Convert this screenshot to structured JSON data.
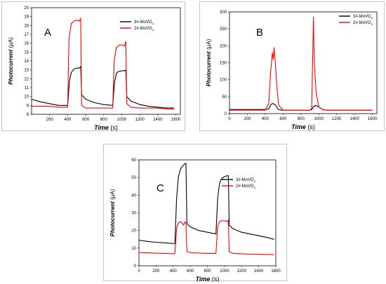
{
  "chart_data": [
    {
      "type": "line",
      "panel_label": "A",
      "xlabel": "Time",
      "xunit": "(s)",
      "ylabel": "Photocurrent",
      "yunit": "(μA)",
      "xlim": [
        0,
        1650
      ],
      "ylim": [
        8,
        20
      ],
      "xticks": [
        200,
        400,
        600,
        800,
        1000,
        1200,
        1400,
        1600
      ],
      "yticks": [
        8,
        9,
        10,
        11,
        12,
        13,
        14,
        15,
        16,
        17,
        18,
        19,
        20
      ],
      "legend_position": "top-right",
      "series": [
        {
          "name": "3#-MoVO",
          "name_sub": "4",
          "color": "#000000",
          "x": [
            0,
            100,
            200,
            300,
            400,
            420,
            440,
            470,
            500,
            530,
            545,
            555,
            600,
            700,
            800,
            900,
            920,
            940,
            960,
            1000,
            1030,
            1045,
            1055,
            1100,
            1200,
            1300,
            1400,
            1500,
            1580
          ],
          "y": [
            9.7,
            9.4,
            9.2,
            9.0,
            9.0,
            11.8,
            12.7,
            13.1,
            13.2,
            13.2,
            13.4,
            10.2,
            9.7,
            9.3,
            9.1,
            9.0,
            11.6,
            12.6,
            12.8,
            12.9,
            12.9,
            13.0,
            10.0,
            9.5,
            9.1,
            8.9,
            8.8,
            8.7,
            8.7
          ]
        },
        {
          "name": "2#-MoVO",
          "name_sub": "4",
          "color": "#ff0000",
          "x": [
            0,
            100,
            200,
            300,
            400,
            415,
            440,
            470,
            500,
            530,
            545,
            555,
            600,
            700,
            800,
            900,
            915,
            940,
            970,
            1000,
            1030,
            1045,
            1055,
            1100,
            1200,
            1300,
            1400,
            1500,
            1580
          ],
          "y": [
            8.9,
            8.9,
            8.9,
            8.8,
            8.8,
            16.5,
            18.2,
            18.5,
            18.6,
            18.5,
            18.8,
            9.0,
            8.7,
            8.7,
            8.7,
            8.7,
            14.0,
            15.5,
            15.8,
            15.8,
            15.7,
            16.2,
            9.2,
            8.8,
            8.7,
            8.7,
            8.7,
            8.6,
            8.6
          ]
        }
      ]
    },
    {
      "type": "line",
      "panel_label": "B",
      "xlabel": "Time",
      "xunit": "(s)",
      "ylabel": "Photocurrent",
      "yunit": "(μA)",
      "xlim": [
        0,
        1650
      ],
      "ylim": [
        0,
        300
      ],
      "xticks": [
        0,
        200,
        400,
        600,
        800,
        1000,
        1200,
        1400,
        1600
      ],
      "yticks": [
        0,
        50,
        100,
        150,
        200,
        250,
        300
      ],
      "legend_position": "top-right",
      "series": [
        {
          "name": "3#-MoVO",
          "name_sub": "4",
          "color": "#000000",
          "x": [
            0,
            200,
            400,
            440,
            460,
            480,
            500,
            520,
            540,
            560,
            600,
            800,
            900,
            920,
            940,
            960,
            1000,
            1040,
            1100,
            1300,
            1500,
            1600
          ],
          "y": [
            12,
            12,
            12,
            14,
            25,
            30,
            28,
            24,
            14,
            11,
            10,
            10,
            10,
            12,
            20,
            24,
            20,
            12,
            10,
            10,
            10,
            10
          ]
        },
        {
          "name": "2#-MoVO",
          "name_sub": "4",
          "color": "#ff0000",
          "x": [
            0,
            200,
            400,
            440,
            460,
            480,
            490,
            500,
            510,
            530,
            550,
            600,
            800,
            900,
            920,
            930,
            940,
            950,
            970,
            1000,
            1040,
            1100,
            1300,
            1500,
            1600
          ],
          "y": [
            10,
            10,
            10,
            30,
            120,
            180,
            160,
            195,
            160,
            80,
            25,
            10,
            10,
            10,
            15,
            150,
            285,
            150,
            60,
            20,
            12,
            10,
            10,
            10,
            10
          ]
        }
      ]
    },
    {
      "type": "line",
      "panel_label": "C",
      "xlabel": "Time",
      "xunit": "(s)",
      "ylabel": "Photocurrent",
      "yunit": "(μA)",
      "xlim": [
        0,
        1600
      ],
      "ylim": [
        0,
        60
      ],
      "xticks": [
        0,
        200,
        400,
        600,
        800,
        1000,
        1200,
        1400,
        1600
      ],
      "yticks": [
        0,
        10,
        20,
        30,
        40,
        50,
        60
      ],
      "legend_position": "top-right",
      "series": [
        {
          "name": "3#-MoVO",
          "name_sub": "4",
          "color": "#000000",
          "x": [
            0,
            100,
            200,
            300,
            420,
            440,
            460,
            480,
            500,
            520,
            540,
            550,
            560,
            600,
            700,
            800,
            900,
            920,
            940,
            960,
            980,
            1000,
            1030,
            1045,
            1055,
            1100,
            1200,
            1300,
            1400,
            1500,
            1580
          ],
          "y": [
            14.5,
            13.8,
            13.3,
            13.0,
            12.5,
            38,
            50,
            54,
            56,
            57,
            58,
            58,
            24,
            22,
            20,
            19,
            18,
            38,
            46,
            49,
            50,
            50.5,
            51,
            51,
            23,
            21,
            19,
            18,
            17,
            16,
            15
          ]
        },
        {
          "name": "2#-MoVO",
          "name_sub": "4",
          "color": "#ff0000",
          "x": [
            0,
            100,
            200,
            300,
            420,
            440,
            460,
            480,
            500,
            520,
            540,
            550,
            560,
            600,
            700,
            800,
            900,
            920,
            940,
            960,
            1000,
            1030,
            1045,
            1055,
            1100,
            1200,
            1300,
            1400,
            1500,
            1580
          ],
          "y": [
            7.5,
            7.3,
            7.1,
            7.0,
            6.8,
            21,
            24,
            25,
            24.5,
            23,
            25,
            24,
            8,
            7.5,
            7.2,
            7.0,
            7.0,
            22,
            25,
            25.5,
            25.5,
            25,
            26,
            8,
            7.0,
            6.8,
            6.6,
            6.5,
            6.4,
            6.3
          ]
        }
      ]
    }
  ]
}
